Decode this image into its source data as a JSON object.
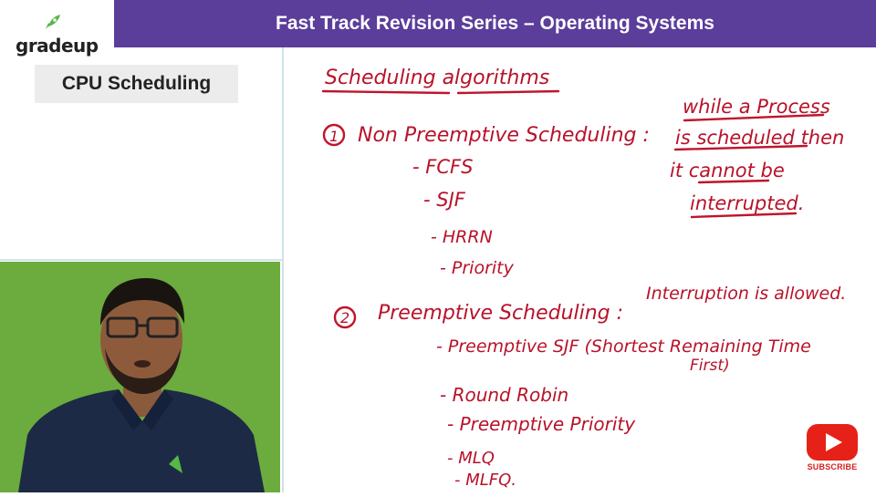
{
  "brand": {
    "logo_text": "gradeup"
  },
  "header": {
    "title": "Fast Track Revision Series – Operating Systems"
  },
  "topic": {
    "label": "CPU Scheduling"
  },
  "board": {
    "heading": "Scheduling algorithms",
    "section1": {
      "number": "1",
      "title": "Non Preemptive Scheduling :",
      "note_line1": "while a Process",
      "note_line2": "is scheduled then",
      "note_line3": "it cannot be",
      "note_line4": "interrupted.",
      "items": [
        "- FCFS",
        "- SJF",
        "- HRRN",
        "- Priority"
      ]
    },
    "section2": {
      "number": "2",
      "title": "Preemptive Scheduling :",
      "note": "Interruption is allowed.",
      "items": [
        "- Preemptive SJF (Shortest Remaining Time",
        "- Round Robin",
        "- Preemptive Priority",
        "- MLQ",
        "- MLFQ."
      ],
      "item1_cont": "First)"
    }
  },
  "subscribe": {
    "label": "SUBSCRIBE"
  },
  "colors": {
    "header_bg": "#5b3d9a",
    "ink": "#c0142c",
    "webcam_bg": "#6cab3e",
    "subscribe_red": "#e62117"
  }
}
